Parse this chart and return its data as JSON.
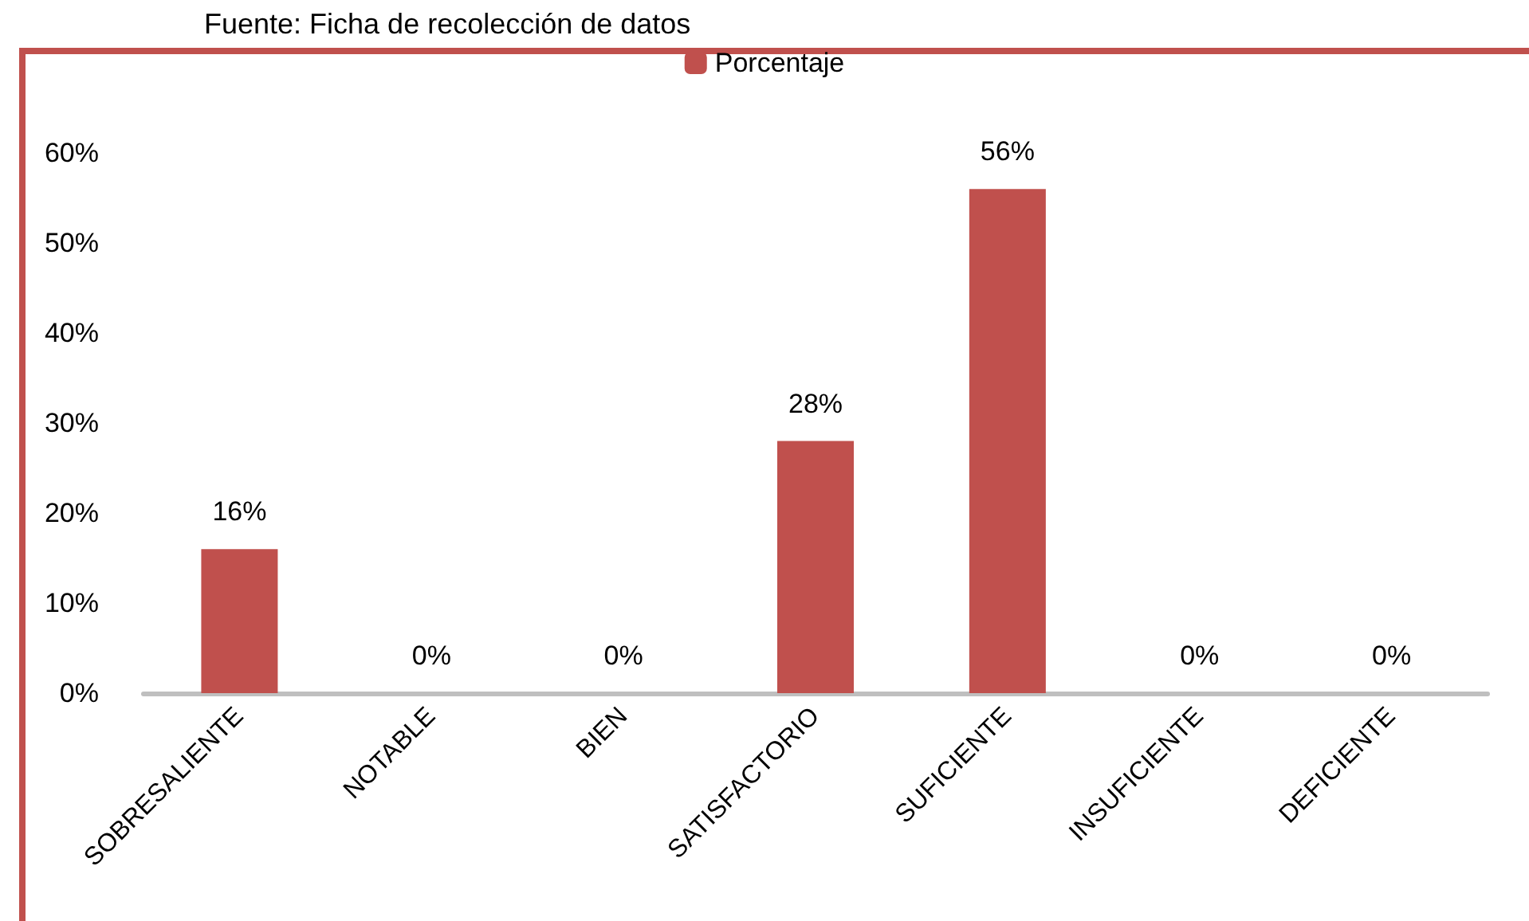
{
  "chart_data": {
    "type": "bar",
    "annotations": [
      "Fuente: Ficha de recolección de datos"
    ],
    "categories": [
      "SOBRESALIENTE",
      "NOTABLE",
      "BIEN",
      "SATISFACTORIO",
      "SUFICIENTE",
      "INSUFICIENTE",
      "DEFICIENTE"
    ],
    "series": [
      {
        "name": "Porcentaje",
        "color": "#c0504d",
        "values": [
          16,
          0,
          0,
          28,
          56,
          0,
          0
        ],
        "value_labels": [
          "16%",
          "0%",
          "0%",
          "28%",
          "56%",
          "0%",
          "0%"
        ]
      }
    ],
    "ylim": [
      0,
      60
    ],
    "yticks": [
      {
        "value": 0,
        "label": "0%"
      },
      {
        "value": 10,
        "label": "10%"
      },
      {
        "value": 20,
        "label": "20%"
      },
      {
        "value": 30,
        "label": "30%"
      },
      {
        "value": 40,
        "label": "40%"
      },
      {
        "value": 50,
        "label": "50%"
      },
      {
        "value": 60,
        "label": "60%"
      }
    ],
    "grid": false,
    "legend": "top"
  }
}
